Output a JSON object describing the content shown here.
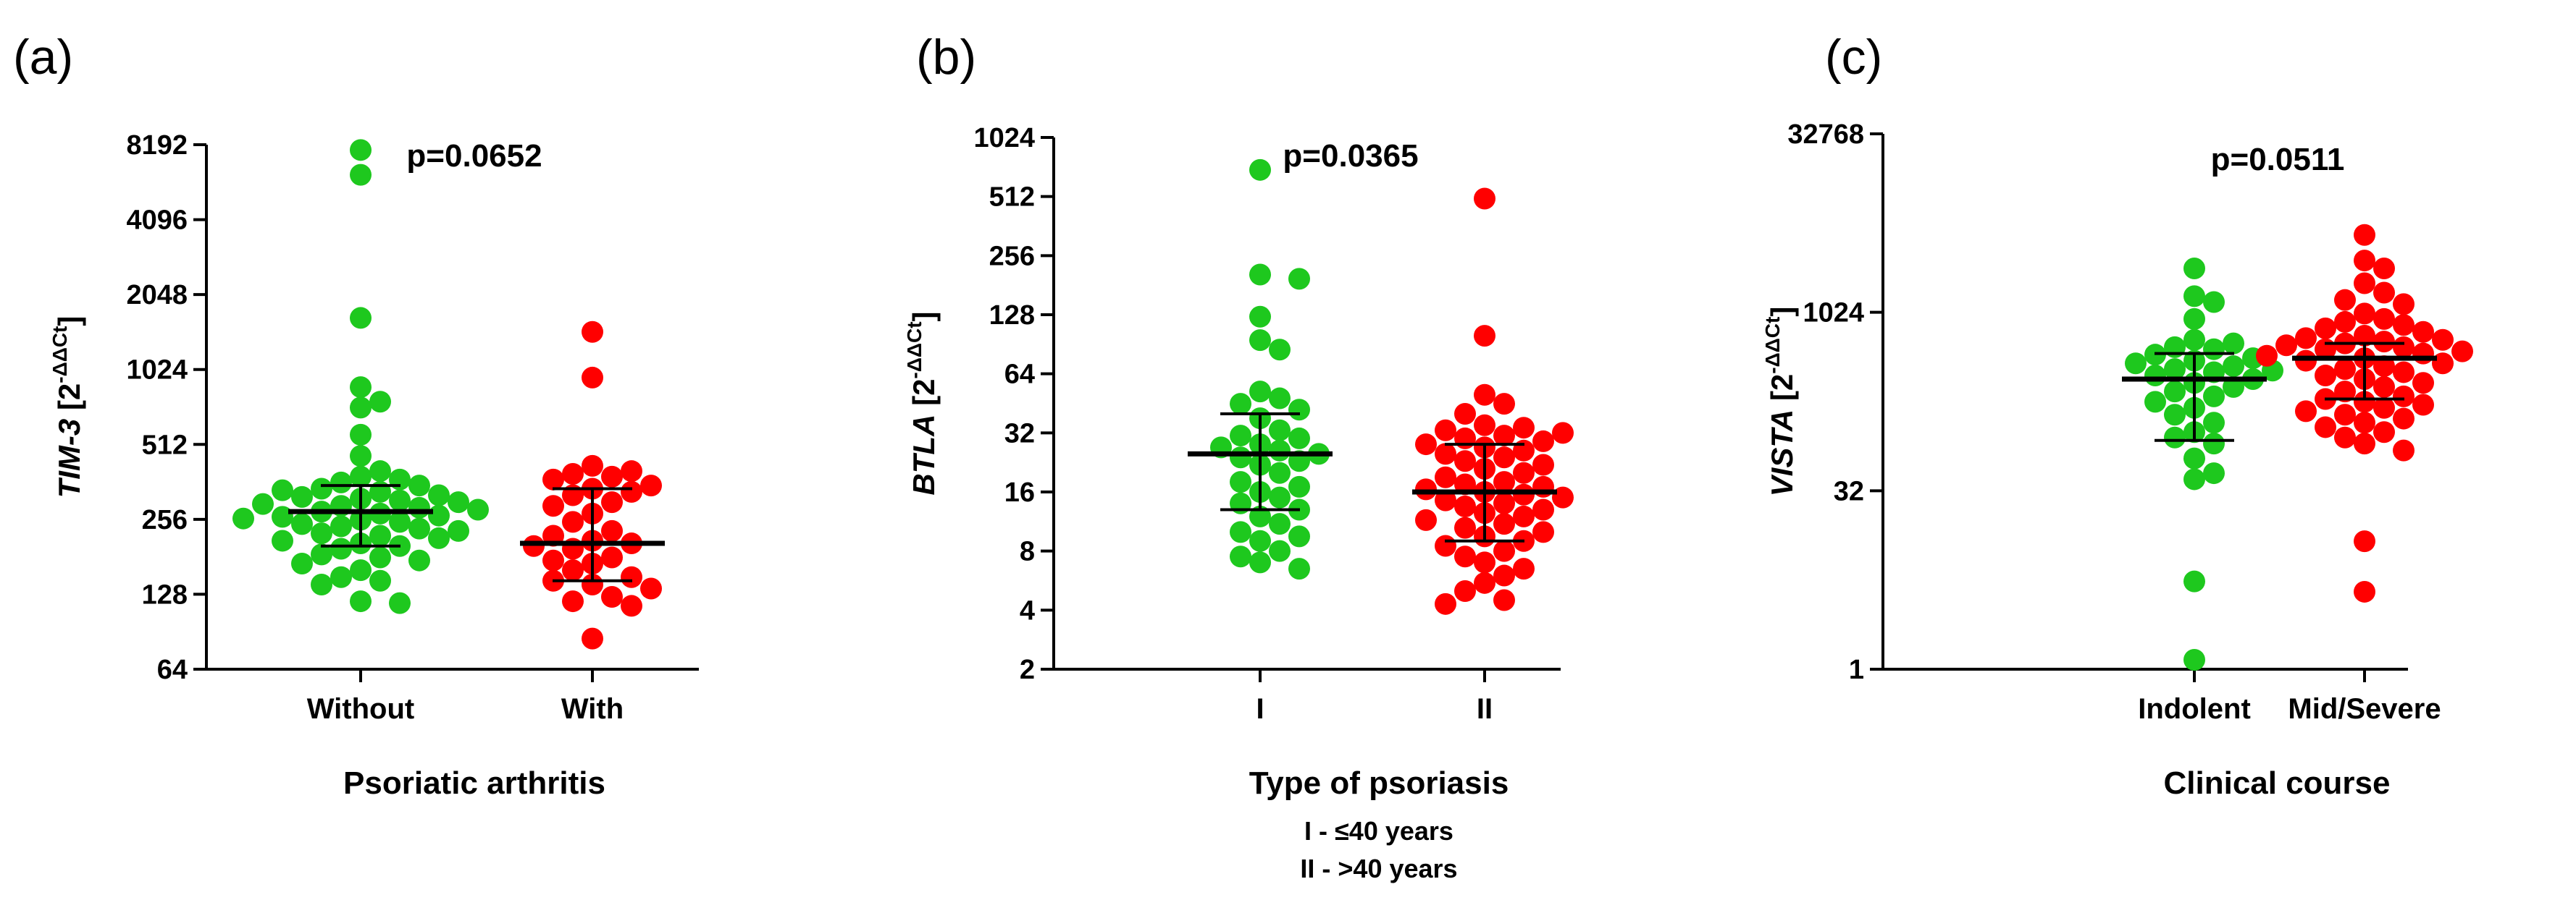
{
  "panels": [
    {
      "label": "(a)",
      "ylabel_gene": "TIM-3",
      "ylabel_rest": " [2",
      "ylabel_sup": "-ΔΔCt",
      "ylabel_end": "]",
      "pvalue": "p=0.0652",
      "xtitle": "Psoriatic arthritis",
      "notes": []
    },
    {
      "label": "(b)",
      "ylabel_gene": "BTLA",
      "ylabel_rest": " [2",
      "ylabel_sup": "-ΔΔCt",
      "ylabel_end": "]",
      "pvalue": "p=0.0365",
      "xtitle": "Type of psoriasis",
      "notes": [
        "I - ≤40 years",
        "II - >40 years"
      ]
    },
    {
      "label": "(c)",
      "ylabel_gene": "VISTA",
      "ylabel_rest": " [2",
      "ylabel_sup": "-ΔΔCt",
      "ylabel_end": "]",
      "pvalue": "p=0.0511",
      "xtitle": "Clinical course",
      "notes": []
    }
  ],
  "colors": {
    "group1": "#1ec81e",
    "group2": "#ff0000",
    "axis": "#000000"
  },
  "chart_data": [
    {
      "type": "scatter",
      "title": "",
      "xlabel": "Psoriatic arthritis",
      "ylabel": "TIM-3 [2^-ΔΔCt]",
      "yscale": "log2",
      "ylim": [
        64,
        8192
      ],
      "yticks": [
        64,
        128,
        256,
        512,
        1024,
        2048,
        4096,
        8192
      ],
      "ytick_labels": [
        "64",
        "128",
        "256",
        "512",
        "1024",
        "2048",
        "4096",
        "8192"
      ],
      "categories": [
        "Without",
        "With"
      ],
      "pvalue": "p=0.0652",
      "series": [
        {
          "name": "Without",
          "values": [
            7800,
            6200,
            1650,
            870,
            760,
            720,
            560,
            460,
            400,
            380,
            370,
            360,
            350,
            340,
            335,
            330,
            320,
            315,
            310,
            305,
            300,
            295,
            290,
            285,
            280,
            275,
            270,
            265,
            262,
            258,
            255,
            250,
            245,
            240,
            235,
            230,
            225,
            220,
            215,
            210,
            205,
            200,
            195,
            185,
            180,
            175,
            170,
            160,
            150,
            145,
            140,
            120,
            118
          ],
          "median": 275,
          "q1": 200,
          "q3": 350
        },
        {
          "name": "With",
          "values": [
            1450,
            950,
            420,
            400,
            390,
            380,
            370,
            350,
            340,
            330,
            320,
            300,
            290,
            270,
            250,
            230,
            220,
            210,
            205,
            200,
            195,
            180,
            175,
            170,
            160,
            150,
            145,
            140,
            135,
            125,
            120,
            115,
            85
          ],
          "median": 205,
          "q1": 145,
          "q3": 340
        }
      ]
    },
    {
      "type": "scatter",
      "title": "",
      "xlabel": "Type of psoriasis",
      "ylabel": "BTLA [2^-ΔΔCt]",
      "yscale": "log2",
      "ylim": [
        2,
        1024
      ],
      "yticks": [
        2,
        4,
        8,
        16,
        32,
        64,
        128,
        256,
        512,
        1024
      ],
      "ytick_labels": [
        "2",
        "4",
        "8",
        "16",
        "32",
        "64",
        "128",
        "256",
        "512",
        "1024"
      ],
      "categories": [
        "I",
        "II"
      ],
      "pvalue": "p=0.0365",
      "series": [
        {
          "name": "I",
          "values": [
            700,
            205,
            195,
            125,
            95,
            85,
            52,
            48,
            45,
            42,
            38,
            33,
            31,
            30,
            28,
            27,
            26,
            25,
            24,
            23,
            22,
            20,
            18,
            17,
            16,
            15,
            14,
            13,
            12,
            11,
            10,
            9.5,
            9,
            8,
            7.5,
            7,
            6.5
          ],
          "median": 25,
          "q1": 13,
          "q3": 40
        },
        {
          "name": "II",
          "values": [
            500,
            100,
            50,
            45,
            40,
            35,
            34,
            33,
            32,
            31,
            30,
            29,
            28,
            27,
            26,
            25,
            24,
            23,
            22,
            21,
            20,
            19,
            18,
            17.5,
            17,
            16.5,
            16,
            15.5,
            15,
            14.5,
            14,
            13.5,
            13,
            12.5,
            12,
            11.5,
            11,
            10.5,
            10,
            9.5,
            9,
            8.5,
            8,
            7.5,
            7,
            6.5,
            6,
            5.5,
            5,
            4.5,
            4.3
          ],
          "median": 16,
          "q1": 9,
          "q3": 28
        }
      ]
    },
    {
      "type": "scatter",
      "title": "",
      "xlabel": "Clinical course",
      "ylabel": "VISTA [2^-ΔΔCt]",
      "yscale": "log2",
      "ylim": [
        1,
        32768
      ],
      "yticks": [
        1,
        32,
        1024,
        32768
      ],
      "ytick_labels": [
        "1",
        "32",
        "1024",
        "32768"
      ],
      "categories": [
        "Indolent",
        "Mid/Severe"
      ],
      "pvalue": "p=0.0511",
      "series": [
        {
          "name": "Indolent",
          "values": [
            2400,
            1400,
            1250,
            900,
            600,
            560,
            520,
            500,
            450,
            420,
            400,
            380,
            360,
            340,
            330,
            320,
            300,
            280,
            260,
            240,
            220,
            200,
            180,
            160,
            140,
            120,
            100,
            90,
            80,
            60,
            45,
            40,
            5.5,
            1.2
          ],
          "median": 280,
          "q1": 85,
          "q3": 460
        },
        {
          "name": "Mid/Severe",
          "values": [
            4600,
            2800,
            2400,
            1800,
            1500,
            1300,
            1200,
            1000,
            900,
            850,
            800,
            750,
            700,
            650,
            620,
            600,
            580,
            560,
            540,
            520,
            500,
            480,
            460,
            440,
            420,
            400,
            380,
            360,
            340,
            320,
            300,
            280,
            260,
            240,
            220,
            200,
            190,
            180,
            170,
            160,
            150,
            140,
            130,
            120,
            110,
            100,
            90,
            80,
            70,
            12,
            4.5
          ],
          "median": 420,
          "q1": 190,
          "q3": 560
        }
      ]
    }
  ]
}
